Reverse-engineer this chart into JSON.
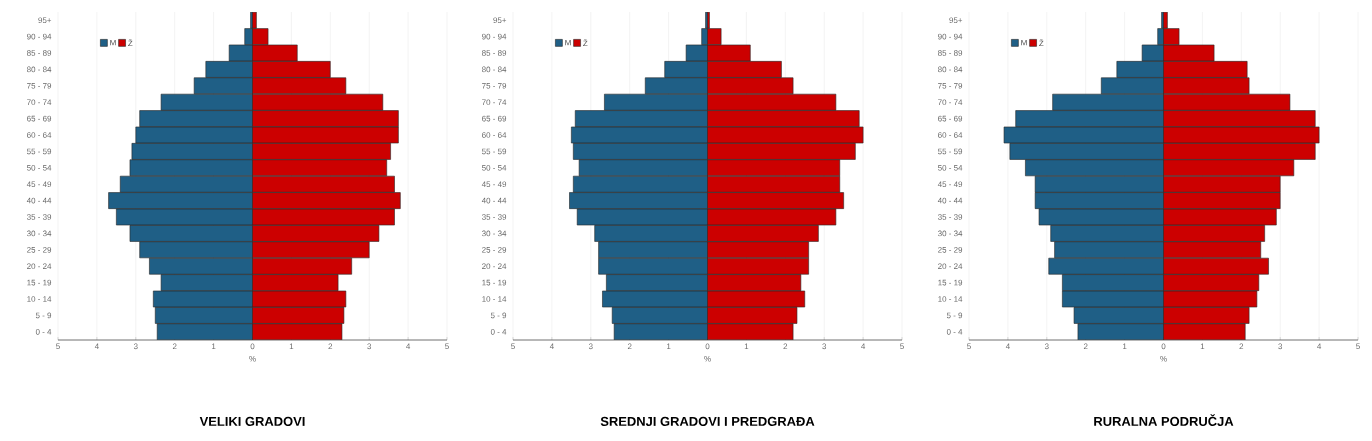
{
  "chart_data": [
    {
      "type": "bar",
      "orientation": "horizontal",
      "stacked": true,
      "title": "VELIKI GRADOVI",
      "xlabel": "%",
      "categories": [
        "95+",
        "90 - 94",
        "85 - 89",
        "80 - 84",
        "75 - 79",
        "70 - 74",
        "65 - 69",
        "60 - 64",
        "55 - 59",
        "50 - 54",
        "45 - 49",
        "40 - 44",
        "35 - 39",
        "30 - 34",
        "25 - 29",
        "20 - 24",
        "15 - 19",
        "10 - 14",
        "5 - 9",
        "0 - 4"
      ],
      "series": [
        {
          "name": "M",
          "color": "#1f5f86",
          "values": [
            -0.05,
            -0.2,
            -0.6,
            -1.2,
            -1.5,
            -2.35,
            -2.9,
            -3.0,
            -3.1,
            -3.15,
            -3.4,
            -3.7,
            -3.5,
            -3.15,
            -2.9,
            -2.65,
            -2.35,
            -2.55,
            -2.5,
            -2.45
          ]
        },
        {
          "name": "Ž",
          "color": "#cc0000",
          "values": [
            0.1,
            0.4,
            1.15,
            2.0,
            2.4,
            3.35,
            3.75,
            3.75,
            3.55,
            3.45,
            3.65,
            3.8,
            3.65,
            3.25,
            3.0,
            2.55,
            2.2,
            2.4,
            2.35,
            2.3
          ]
        }
      ],
      "xlim": [
        -5,
        5
      ],
      "xticks": [
        {
          "value": -5,
          "label": "5"
        },
        {
          "value": -4,
          "label": "4"
        },
        {
          "value": -3,
          "label": "3"
        },
        {
          "value": -2,
          "label": "2"
        },
        {
          "value": -1,
          "label": "1"
        },
        0,
        1,
        2,
        3,
        4,
        5
      ],
      "grid": "x",
      "legend": "top left"
    },
    {
      "type": "bar",
      "orientation": "horizontal",
      "stacked": true,
      "title": "SREDNJI GRADOVI I PREDGRAĐA",
      "xlabel": "%",
      "categories": [
        "95+",
        "90 - 94",
        "85 - 89",
        "80 - 84",
        "75 - 79",
        "70 - 74",
        "65 - 69",
        "60 - 64",
        "55 - 59",
        "50 - 54",
        "45 - 49",
        "40 - 44",
        "35 - 39",
        "30 - 34",
        "25 - 29",
        "20 - 24",
        "15 - 19",
        "10 - 14",
        "5 - 9",
        "0 - 4"
      ],
      "series": [
        {
          "name": "M",
          "color": "#1f5f86",
          "values": [
            -0.05,
            -0.15,
            -0.55,
            -1.1,
            -1.6,
            -2.65,
            -3.4,
            -3.5,
            -3.45,
            -3.3,
            -3.45,
            -3.55,
            -3.35,
            -2.9,
            -2.8,
            -2.8,
            -2.6,
            -2.7,
            -2.45,
            -2.4
          ]
        },
        {
          "name": "Ž",
          "color": "#cc0000",
          "values": [
            0.05,
            0.35,
            1.1,
            1.9,
            2.2,
            3.3,
            3.9,
            4.0,
            3.8,
            3.4,
            3.4,
            3.5,
            3.3,
            2.85,
            2.6,
            2.6,
            2.4,
            2.5,
            2.3,
            2.2
          ]
        }
      ],
      "xlim": [
        -5,
        5
      ],
      "xticks": [
        {
          "value": -5,
          "label": "5"
        },
        {
          "value": -4,
          "label": "4"
        },
        {
          "value": -3,
          "label": "3"
        },
        {
          "value": -2,
          "label": "2"
        },
        {
          "value": -1,
          "label": "1"
        },
        0,
        1,
        2,
        3,
        4,
        5
      ],
      "grid": "x",
      "legend": "top left"
    },
    {
      "type": "bar",
      "orientation": "horizontal",
      "stacked": true,
      "title": "RURALNA PODRUČJA",
      "xlabel": "%",
      "categories": [
        "95+",
        "90 - 94",
        "85 - 89",
        "80 - 84",
        "75 - 79",
        "70 - 74",
        "65 - 69",
        "60 - 64",
        "55 - 59",
        "50 - 54",
        "45 - 49",
        "40 - 44",
        "35 - 39",
        "30 - 34",
        "25 - 29",
        "20 - 24",
        "15 - 19",
        "10 - 14",
        "5 - 9",
        "0 - 4"
      ],
      "series": [
        {
          "name": "M",
          "color": "#1f5f86",
          "values": [
            -0.05,
            -0.15,
            -0.55,
            -1.2,
            -1.6,
            -2.85,
            -3.8,
            -4.1,
            -3.95,
            -3.55,
            -3.3,
            -3.3,
            -3.2,
            -2.9,
            -2.8,
            -2.95,
            -2.6,
            -2.6,
            -2.3,
            -2.2
          ]
        },
        {
          "name": "Ž",
          "color": "#cc0000",
          "values": [
            0.1,
            0.4,
            1.3,
            2.15,
            2.2,
            3.25,
            3.9,
            4.0,
            3.9,
            3.35,
            3.0,
            3.0,
            2.9,
            2.6,
            2.5,
            2.7,
            2.45,
            2.4,
            2.2,
            2.1
          ]
        }
      ],
      "xlim": [
        -5,
        5
      ],
      "xticks": [
        {
          "value": -5,
          "label": "5"
        },
        {
          "value": -4,
          "label": "4"
        },
        {
          "value": -3,
          "label": "3"
        },
        {
          "value": -2,
          "label": "2"
        },
        {
          "value": -1,
          "label": "1"
        },
        0,
        1,
        2,
        3,
        4,
        5
      ],
      "grid": "x",
      "legend": "top left"
    }
  ]
}
